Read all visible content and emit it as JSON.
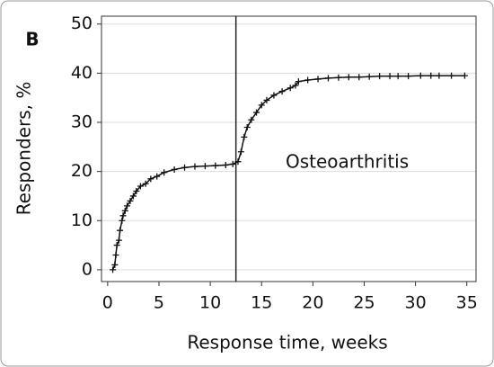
{
  "chart_data": {
    "type": "line",
    "panel_label": "B",
    "annotation": "Osteoarthritis",
    "xlabel": "Response time, weeks",
    "ylabel": "Responders, %",
    "x": [
      0.5,
      0.7,
      0.8,
      0.9,
      1.1,
      1.2,
      1.4,
      1.5,
      1.7,
      1.9,
      2.2,
      2.5,
      2.8,
      3.2,
      3.7,
      4.2,
      4.8,
      5.5,
      6.5,
      7.5,
      8.5,
      9.5,
      10.5,
      11.5,
      12.2,
      12.7,
      13.0,
      13.3,
      13.6,
      14.0,
      14.5,
      15.0,
      15.5,
      16.2,
      17.0,
      17.8,
      18.3,
      18.6,
      19.5,
      20.5,
      21.5,
      22.5,
      23.5,
      24.5,
      25.5,
      26.5,
      27.5,
      28.3,
      29.3,
      30.5,
      31.5,
      32.3,
      33.5,
      34.8
    ],
    "series": [
      {
        "name": "Osteoarthritis",
        "color": "#111111",
        "values": [
          0,
          1,
          3,
          5,
          6,
          8,
          10,
          11,
          12,
          13,
          14,
          15,
          16,
          17,
          17.5,
          18.5,
          19,
          19.8,
          20.4,
          20.8,
          21,
          21.1,
          21.2,
          21.3,
          21.5,
          22,
          24,
          27,
          29,
          30.5,
          32,
          33.5,
          34.5,
          35.5,
          36.3,
          37,
          37.5,
          38.3,
          38.6,
          38.8,
          39,
          39.1,
          39.2,
          39.2,
          39.3,
          39.4,
          39.4,
          39.4,
          39.4,
          39.5,
          39.5,
          39.5,
          39.5,
          39.5
        ]
      }
    ],
    "reference_line_x": 12.5,
    "xlim": [
      -0.6,
      35.9
    ],
    "xticks": [
      0,
      5,
      10,
      15,
      20,
      25,
      30,
      35
    ],
    "ylim": [
      -2.4,
      51.6
    ],
    "yticks": [
      0,
      10,
      20,
      30,
      40,
      50
    ],
    "grid": true
  }
}
